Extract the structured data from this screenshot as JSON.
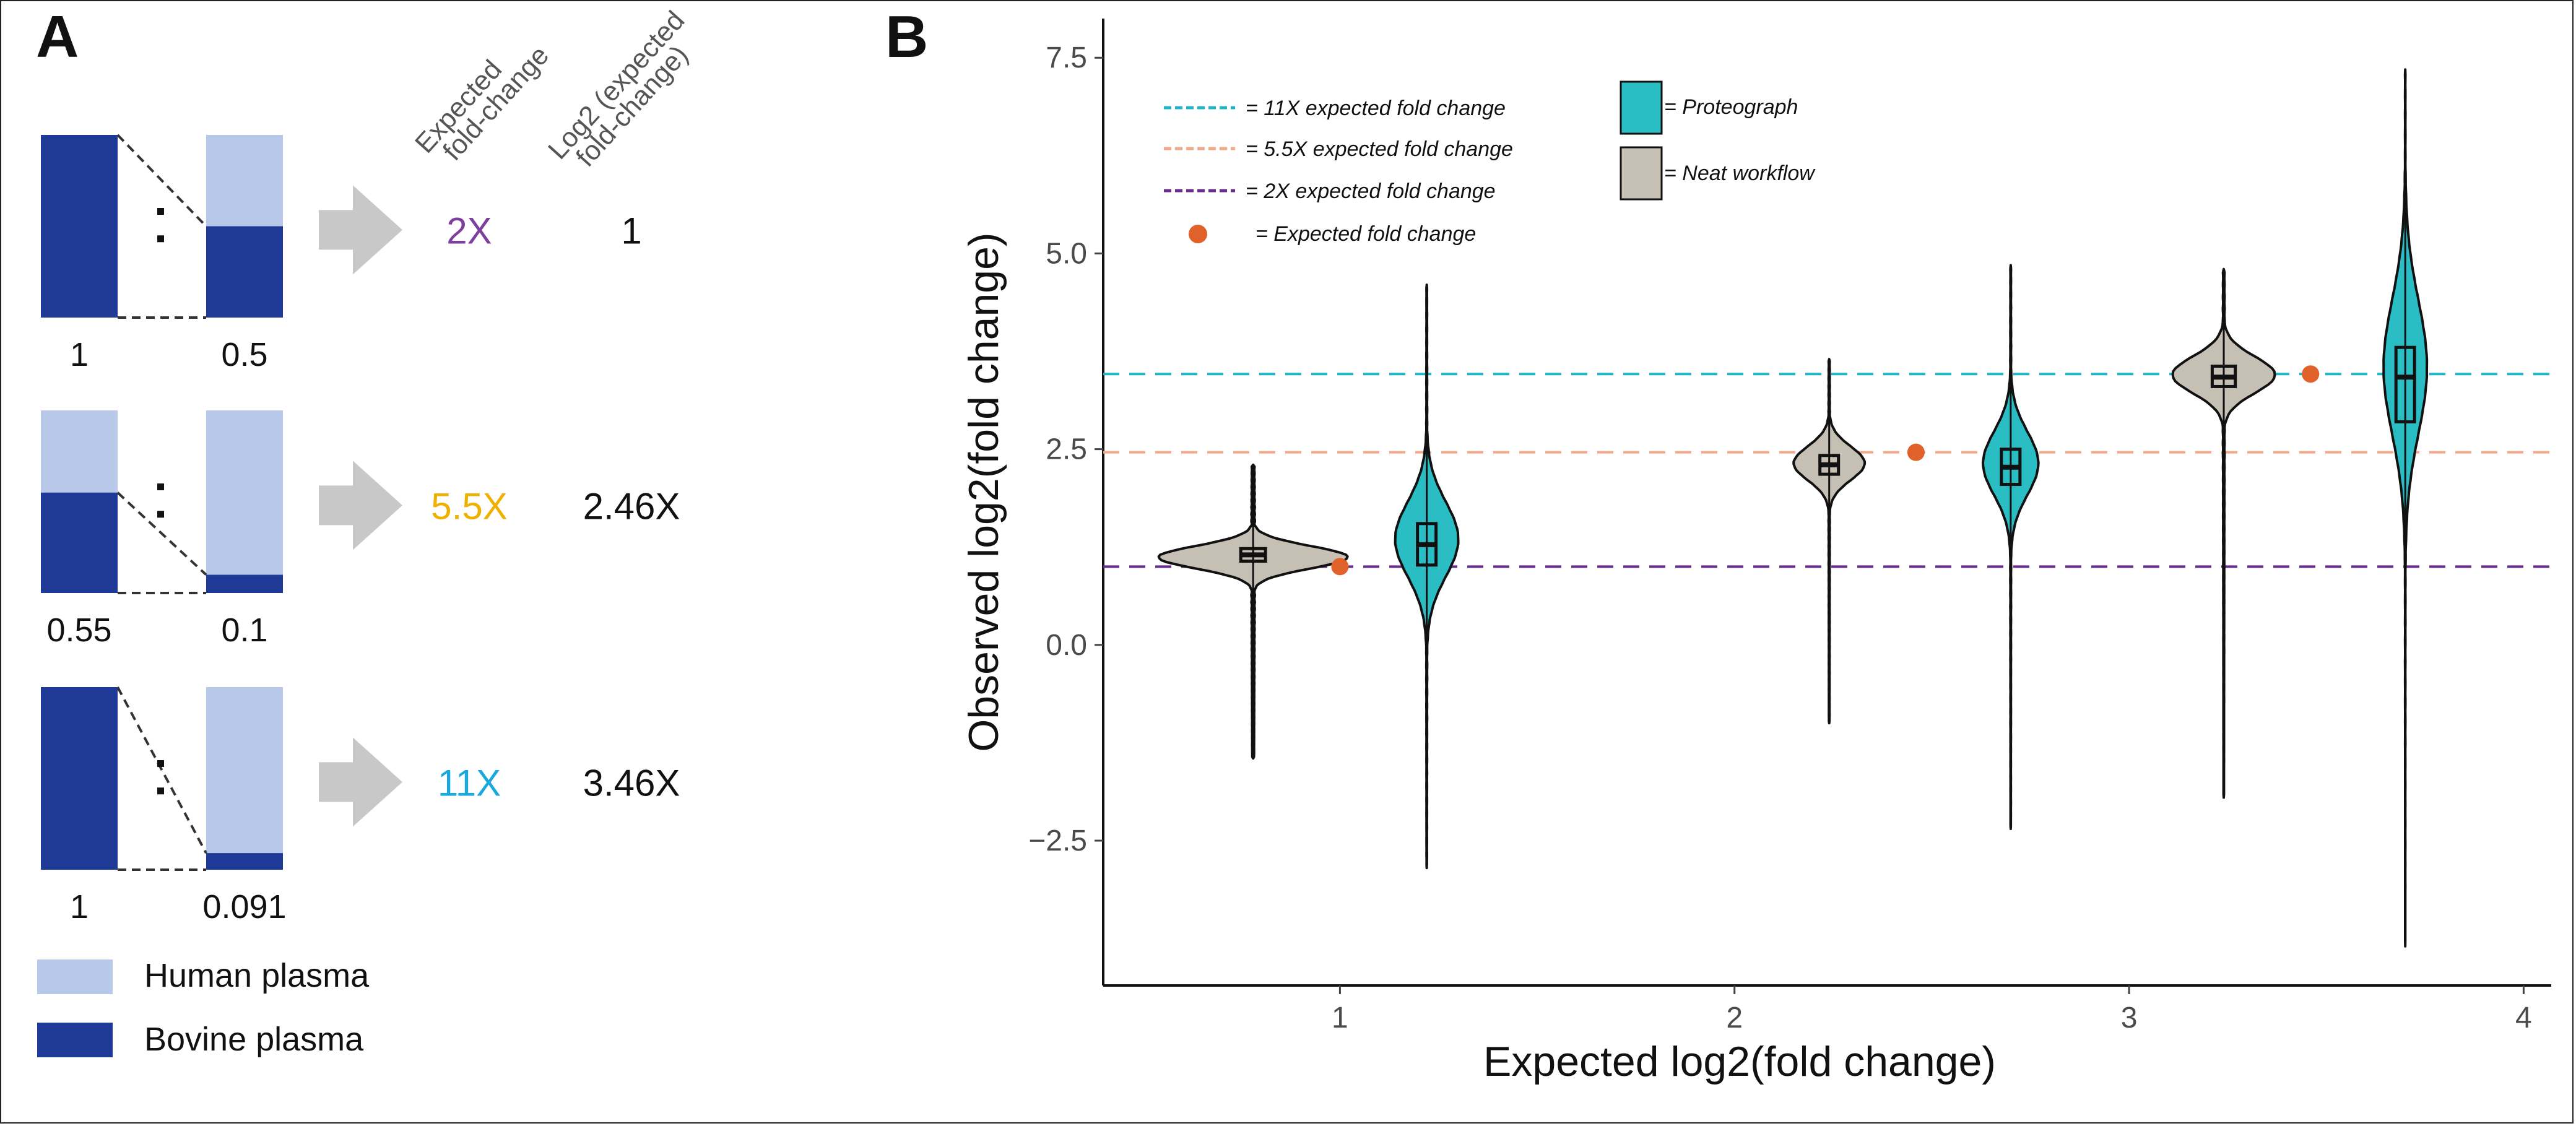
{
  "panel_a": {
    "letter": "A",
    "header_expected": [
      "Expected",
      "fold-change"
    ],
    "header_log2": [
      "Log2 (expected",
      "fold-change)"
    ],
    "rows": [
      {
        "left_value": "1",
        "right_value": "0.5",
        "fold": "2X",
        "log2": "1",
        "fold_color": "#7b3f9e",
        "left_bovine_fraction": 1.0,
        "right_bovine_fraction": 0.5
      },
      {
        "left_value": "0.55",
        "right_value": "0.1",
        "fold": "5.5X",
        "log2": "2.46X",
        "fold_color": "#f0b000",
        "left_bovine_fraction": 0.55,
        "right_bovine_fraction": 0.1
      },
      {
        "left_value": "1",
        "right_value": "0.091",
        "fold": "11X",
        "log2": "3.46X",
        "fold_color": "#1aa7dc",
        "left_bovine_fraction": 1.0,
        "right_bovine_fraction": 0.091
      }
    ],
    "legend": [
      {
        "label": "Human plasma",
        "color": "#b8c8e8"
      },
      {
        "label": "Bovine plasma",
        "color": "#1e3a96"
      }
    ]
  },
  "chart_data": {
    "letter": "B",
    "type": "violin",
    "xlabel": "Expected log2(fold change)",
    "ylabel": "Observed log2(fold change)",
    "xlim": [
      0.4,
      4.07
    ],
    "ylim": [
      -4.35,
      8.0
    ],
    "x_ticks": [
      1,
      2,
      3,
      4
    ],
    "x_tick_labels": [
      "1",
      "2",
      "3",
      "4"
    ],
    "y_ticks": [
      7.5,
      5.0,
      2.5,
      0.0,
      -2.5
    ],
    "y_tick_labels": [
      "7.5",
      "5.0",
      "2.5",
      "0.0",
      "−2.5"
    ],
    "reference_lines": [
      {
        "label": "= 11X expected fold change",
        "y": 3.46,
        "color": "#1fb5c4"
      },
      {
        "label": "= 5.5X expected fold change",
        "y": 2.46,
        "color": "#f2a98a"
      },
      {
        "label": "= 2X expected fold change",
        "y": 1.0,
        "color": "#6a2c8e"
      }
    ],
    "expected_points": {
      "label": "= Expected fold change",
      "color": "#e0622a",
      "x": [
        1.0,
        2.46,
        3.46
      ],
      "y": [
        1.0,
        2.46,
        3.46
      ]
    },
    "series": [
      {
        "name": "= Proteograph",
        "color": "#2bbdc4"
      },
      {
        "name": "= Neat workflow",
        "color": "#c5bfb4"
      }
    ],
    "violins": [
      {
        "group": "2X",
        "series": "= Neat workflow",
        "x": 0.78,
        "min": -1.45,
        "max": 2.3,
        "q1": 1.07,
        "median": 1.15,
        "q3": 1.23,
        "mode": 1.12,
        "half_width": 0.24
      },
      {
        "group": "2X",
        "series": "= Proteograph",
        "x": 1.22,
        "min": -2.85,
        "max": 4.6,
        "q1": 1.02,
        "median": 1.28,
        "q3": 1.55,
        "mode": 1.35,
        "half_width": 0.08
      },
      {
        "group": "5.5X",
        "series": "= Neat workflow",
        "x": 2.24,
        "min": -1.0,
        "max": 3.65,
        "q1": 2.18,
        "median": 2.3,
        "q3": 2.42,
        "mode": 2.32,
        "half_width": 0.09
      },
      {
        "group": "5.5X",
        "series": "= Proteograph",
        "x": 2.7,
        "min": -2.35,
        "max": 4.85,
        "q1": 2.05,
        "median": 2.27,
        "q3": 2.5,
        "mode": 2.32,
        "half_width": 0.07
      },
      {
        "group": "11X",
        "series": "= Neat workflow",
        "x": 3.24,
        "min": -1.95,
        "max": 4.8,
        "q1": 3.3,
        "median": 3.42,
        "q3": 3.56,
        "mode": 3.45,
        "half_width": 0.13
      },
      {
        "group": "11X",
        "series": "= Proteograph",
        "x": 3.7,
        "min": -3.85,
        "max": 7.35,
        "q1": 2.85,
        "median": 3.42,
        "q3": 3.8,
        "mode": 3.55,
        "half_width": 0.055
      }
    ]
  }
}
